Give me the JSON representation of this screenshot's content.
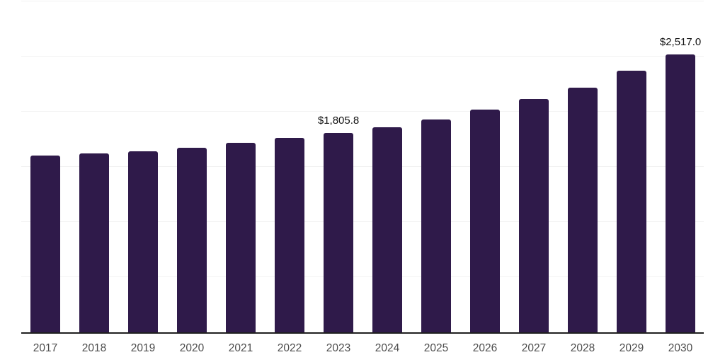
{
  "chart_data": {
    "type": "bar",
    "title": "",
    "xlabel": "",
    "ylabel": "",
    "categories": [
      "2017",
      "2018",
      "2019",
      "2020",
      "2021",
      "2022",
      "2023",
      "2024",
      "2025",
      "2026",
      "2027",
      "2028",
      "2029",
      "2030"
    ],
    "values": [
      1600,
      1621,
      1642,
      1675,
      1721,
      1760,
      1805.8,
      1862,
      1931,
      2018,
      2117,
      2219,
      2373,
      2517
    ],
    "annotations": [
      {
        "category": "2023",
        "text": "$1,805.8"
      },
      {
        "category": "2030",
        "text": "$2,517.0"
      }
    ],
    "ylim": [
      0,
      3000
    ],
    "grid_step": 500,
    "grid_on": true,
    "legend": "none",
    "colors": {
      "bar": "#2f1a4a",
      "gridline": "#f2f2f2",
      "axis_line": "#1f1f1f",
      "tick_label": "#4d4d4d",
      "value_label": "#111111",
      "background": "#ffffff"
    }
  }
}
